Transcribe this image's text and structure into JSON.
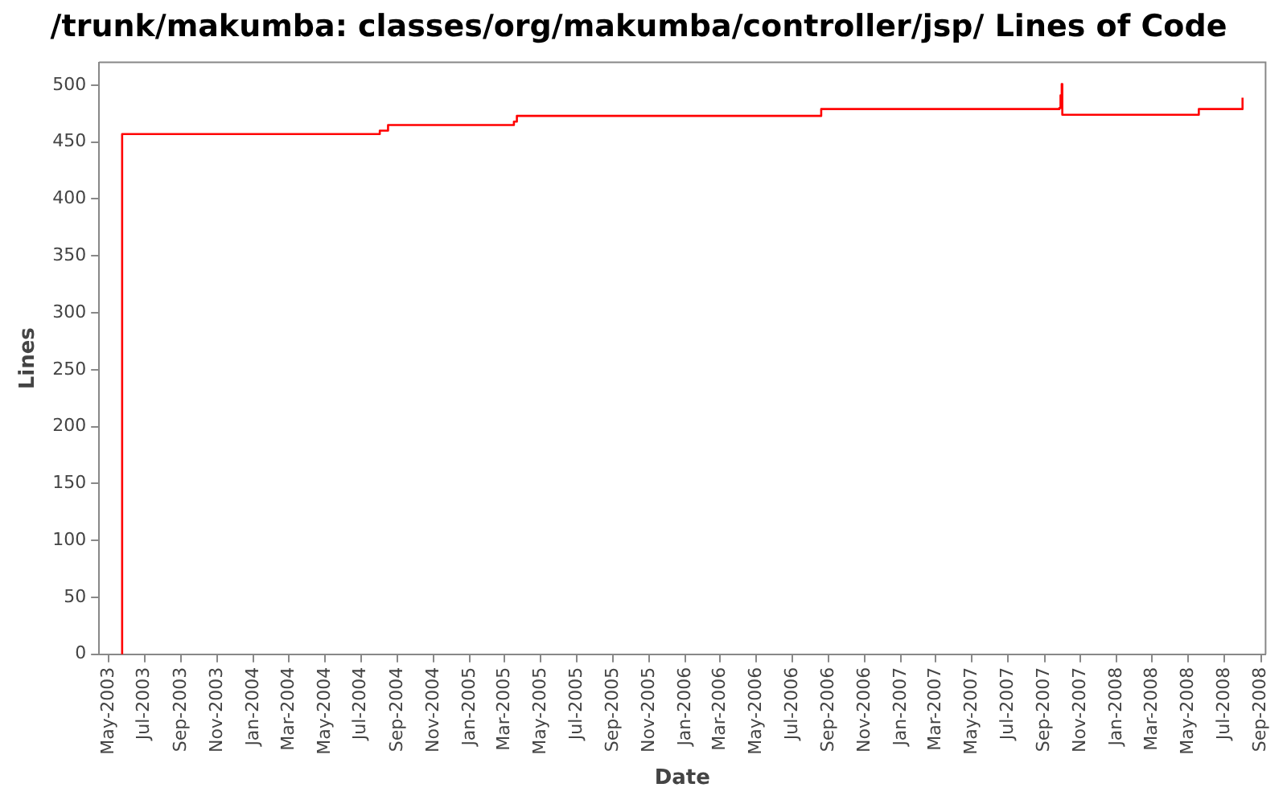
{
  "chart_data": {
    "type": "step",
    "title": "/trunk/makumba: classes/org/makumba/controller/jsp/ Lines of Code",
    "xlabel": "Date",
    "ylabel": "Lines",
    "x": [
      "2003-05-23",
      "2003-05-24",
      "2004-08-02",
      "2004-08-16",
      "2005-03-17",
      "2005-03-22",
      "2006-08-19",
      "2007-09-26",
      "2007-09-28",
      "2007-09-30",
      "2007-10-01",
      "2008-05-19",
      "2008-08-01"
    ],
    "values": [
      0,
      457,
      460,
      465,
      468,
      473,
      479,
      480,
      491,
      501,
      474,
      479,
      489
    ],
    "color": "#ff0000",
    "marker": "none",
    "grid": false,
    "legend": false,
    "xlim": [
      "2003-04-15",
      "2008-09-09"
    ],
    "xticks": [
      {
        "value": "2003-05-01",
        "label": "May-2003"
      },
      {
        "value": "2003-07-01",
        "label": "Jul-2003"
      },
      {
        "value": "2003-09-01",
        "label": "Sep-2003"
      },
      {
        "value": "2003-11-01",
        "label": "Nov-2003"
      },
      {
        "value": "2004-01-01",
        "label": "Jan-2004"
      },
      {
        "value": "2004-03-01",
        "label": "Mar-2004"
      },
      {
        "value": "2004-05-01",
        "label": "May-2004"
      },
      {
        "value": "2004-07-01",
        "label": "Jul-2004"
      },
      {
        "value": "2004-09-01",
        "label": "Sep-2004"
      },
      {
        "value": "2004-11-01",
        "label": "Nov-2004"
      },
      {
        "value": "2005-01-01",
        "label": "Jan-2005"
      },
      {
        "value": "2005-03-01",
        "label": "Mar-2005"
      },
      {
        "value": "2005-05-01",
        "label": "May-2005"
      },
      {
        "value": "2005-07-01",
        "label": "Jul-2005"
      },
      {
        "value": "2005-09-01",
        "label": "Sep-2005"
      },
      {
        "value": "2005-11-01",
        "label": "Nov-2005"
      },
      {
        "value": "2006-01-01",
        "label": "Jan-2006"
      },
      {
        "value": "2006-03-01",
        "label": "Mar-2006"
      },
      {
        "value": "2006-05-01",
        "label": "May-2006"
      },
      {
        "value": "2006-07-01",
        "label": "Jul-2006"
      },
      {
        "value": "2006-09-01",
        "label": "Sep-2006"
      },
      {
        "value": "2006-11-01",
        "label": "Nov-2006"
      },
      {
        "value": "2007-01-01",
        "label": "Jan-2007"
      },
      {
        "value": "2007-03-01",
        "label": "Mar-2007"
      },
      {
        "value": "2007-05-01",
        "label": "May-2007"
      },
      {
        "value": "2007-07-01",
        "label": "Jul-2007"
      },
      {
        "value": "2007-09-01",
        "label": "Sep-2007"
      },
      {
        "value": "2007-11-01",
        "label": "Nov-2007"
      },
      {
        "value": "2008-01-01",
        "label": "Jan-2008"
      },
      {
        "value": "2008-03-01",
        "label": "Mar-2008"
      },
      {
        "value": "2008-05-01",
        "label": "May-2008"
      },
      {
        "value": "2008-07-01",
        "label": "Jul-2008"
      },
      {
        "value": "2008-09-01",
        "label": "Sep-2008"
      }
    ],
    "ylim": [
      0,
      520
    ],
    "yticks": [
      0,
      50,
      100,
      150,
      200,
      250,
      300,
      350,
      400,
      450,
      500
    ]
  }
}
